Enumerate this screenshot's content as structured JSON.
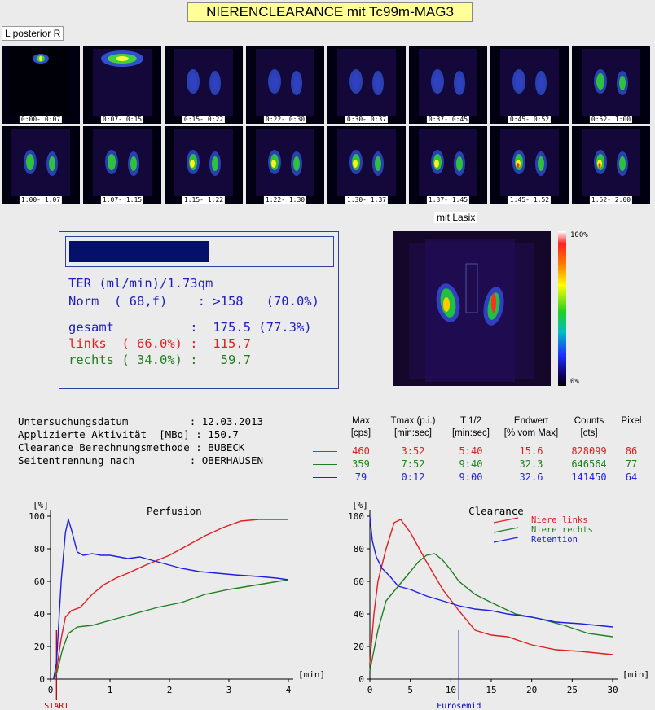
{
  "title": "NIERENCLEARANCE  mit  Tc99m-MAG3",
  "orientation": "L  posterior  R",
  "frames": [
    "0:00- 0:07",
    "0:07- 0:15",
    "0:15- 0:22",
    "0:22- 0:30",
    "0:30- 0:37",
    "0:37- 0:45",
    "0:45- 0:52",
    "0:52- 1:00",
    "1:00- 1:07",
    "1:07- 1:15",
    "1:15- 1:22",
    "1:22- 1:30",
    "1:30- 1:37",
    "1:37- 1:45",
    "1:45- 1:52",
    "1:52- 2:00"
  ],
  "lasix_label": "mit Lasix",
  "colorbar": {
    "top": "100%",
    "bottom": "0%"
  },
  "ter": {
    "bar_fraction": 0.54,
    "line1": "TER (ml/min)/1.73qm",
    "norm": "Norm  ( 68,f)    : >158   (70.0%)",
    "gesamt": "gesamt          :  175.5 (77.3%)",
    "links": "links  ( 66.0%) :  115.7",
    "rechts": "rechts ( 34.0%) :   59.7"
  },
  "info": {
    "l1": "Untersuchungsdatum          : 12.03.2013",
    "l2": "Applizierte Aktivität  [MBq] : 150.7",
    "l3": "Clearance Berechnungsmethode : BUBECK",
    "l4": "Seitentrennung nach         : OBERHAUSEN"
  },
  "table": {
    "headers": [
      [
        "Max",
        "[cps]"
      ],
      [
        "Tmax (p.i.)",
        "[min:sec]"
      ],
      [
        "T 1/2",
        "[min:sec]"
      ],
      [
        "Endwert",
        "[% vom Max]"
      ],
      [
        "Counts",
        "[cts]"
      ],
      [
        "Pixel",
        ""
      ]
    ],
    "rows": [
      {
        "color": "#e02020",
        "values": [
          "460",
          "3:52",
          "5:40",
          "15.6",
          "828099",
          "86"
        ]
      },
      {
        "color": "#208020",
        "values": [
          "359",
          "7:52",
          "9:40",
          "32.3",
          "646564",
          "77"
        ]
      },
      {
        "color": "#2020e0",
        "values": [
          "79",
          "0:12",
          "9:00",
          "32.6",
          "141450",
          "64"
        ]
      }
    ]
  },
  "chart_data": [
    {
      "type": "line",
      "title": "Perfusion",
      "ylabel": "[%]",
      "xlabel": "[min]",
      "xlim": [
        0,
        4
      ],
      "ylim": [
        0,
        100
      ],
      "xticks": [
        "0",
        "1",
        "2",
        "3",
        "4"
      ],
      "yticks": [
        "0",
        "20",
        "40",
        "60",
        "80",
        "100"
      ],
      "marker": {
        "label": "START",
        "x": 0.1,
        "color": "#c00000"
      },
      "series": [
        {
          "color": "#e02020",
          "points": [
            [
              0.05,
              0
            ],
            [
              0.1,
              5
            ],
            [
              0.18,
              25
            ],
            [
              0.25,
              38
            ],
            [
              0.35,
              42
            ],
            [
              0.5,
              44
            ],
            [
              0.7,
              52
            ],
            [
              0.9,
              58
            ],
            [
              1.1,
              62
            ],
            [
              1.3,
              65
            ],
            [
              1.6,
              70
            ],
            [
              2.0,
              76
            ],
            [
              2.3,
              82
            ],
            [
              2.6,
              88
            ],
            [
              2.9,
              93
            ],
            [
              3.2,
              97
            ],
            [
              3.5,
              98
            ],
            [
              4.0,
              98
            ]
          ]
        },
        {
          "color": "#208020",
          "points": [
            [
              0.05,
              0
            ],
            [
              0.1,
              3
            ],
            [
              0.2,
              18
            ],
            [
              0.3,
              28
            ],
            [
              0.45,
              32
            ],
            [
              0.7,
              33
            ],
            [
              1.0,
              36
            ],
            [
              1.4,
              40
            ],
            [
              1.8,
              44
            ],
            [
              2.2,
              47
            ],
            [
              2.6,
              52
            ],
            [
              3.0,
              55
            ],
            [
              3.5,
              58
            ],
            [
              4.0,
              61
            ]
          ]
        },
        {
          "color": "#2020e0",
          "points": [
            [
              0.05,
              0
            ],
            [
              0.1,
              10
            ],
            [
              0.18,
              60
            ],
            [
              0.25,
              90
            ],
            [
              0.3,
              98
            ],
            [
              0.35,
              92
            ],
            [
              0.4,
              85
            ],
            [
              0.45,
              78
            ],
            [
              0.55,
              76
            ],
            [
              0.7,
              77
            ],
            [
              0.85,
              76
            ],
            [
              1.0,
              76
            ],
            [
              1.3,
              74
            ],
            [
              1.5,
              75
            ],
            [
              1.7,
              73
            ],
            [
              2.0,
              70
            ],
            [
              2.2,
              68
            ],
            [
              2.5,
              66
            ],
            [
              2.8,
              65
            ],
            [
              3.1,
              64
            ],
            [
              3.5,
              63
            ],
            [
              3.8,
              62
            ],
            [
              4.0,
              61
            ]
          ]
        }
      ]
    },
    {
      "type": "line",
      "title": "Clearance",
      "ylabel": "[%]",
      "xlabel": "[min]",
      "xlim": [
        0,
        30
      ],
      "ylim": [
        0,
        100
      ],
      "xticks": [
        "0",
        "5",
        "10",
        "15",
        "20",
        "25",
        "30"
      ],
      "yticks": [
        "0",
        "20",
        "40",
        "60",
        "80",
        "100"
      ],
      "marker": {
        "label": "Furosemid",
        "x": 11,
        "color": "#0000c0"
      },
      "legend": [
        {
          "name": "Niere links",
          "color": "#e02020"
        },
        {
          "name": "Niere rechts",
          "color": "#208020"
        },
        {
          "name": "Retention",
          "color": "#2020e0"
        }
      ],
      "series": [
        {
          "color": "#e02020",
          "points": [
            [
              0,
              10
            ],
            [
              0.5,
              40
            ],
            [
              1,
              60
            ],
            [
              2,
              80
            ],
            [
              3,
              96
            ],
            [
              3.8,
              98
            ],
            [
              5,
              90
            ],
            [
              7,
              72
            ],
            [
              9,
              55
            ],
            [
              11,
              42
            ],
            [
              13,
              30
            ],
            [
              15,
              27
            ],
            [
              17,
              26
            ],
            [
              20,
              21
            ],
            [
              23,
              18
            ],
            [
              26,
              17
            ],
            [
              30,
              15
            ]
          ]
        },
        {
          "color": "#208020",
          "points": [
            [
              0,
              5
            ],
            [
              1,
              30
            ],
            [
              2,
              48
            ],
            [
              3,
              54
            ],
            [
              4,
              60
            ],
            [
              5,
              66
            ],
            [
              6,
              72
            ],
            [
              7,
              76
            ],
            [
              8,
              77
            ],
            [
              9,
              73
            ],
            [
              10,
              67
            ],
            [
              11,
              60
            ],
            [
              13,
              52
            ],
            [
              15,
              47
            ],
            [
              18,
              40
            ],
            [
              21,
              37
            ],
            [
              24,
              33
            ],
            [
              27,
              28
            ],
            [
              30,
              26
            ]
          ]
        },
        {
          "color": "#2020e0",
          "points": [
            [
              0,
              100
            ],
            [
              0.3,
              85
            ],
            [
              0.8,
              75
            ],
            [
              1.5,
              68
            ],
            [
              2.5,
              63
            ],
            [
              3.5,
              57
            ],
            [
              5,
              55
            ],
            [
              7,
              51
            ],
            [
              9,
              48
            ],
            [
              11,
              45
            ],
            [
              13,
              43
            ],
            [
              15,
              42
            ],
            [
              17,
              40
            ],
            [
              20,
              38
            ],
            [
              23,
              35
            ],
            [
              26,
              34
            ],
            [
              30,
              32
            ]
          ]
        }
      ]
    }
  ]
}
